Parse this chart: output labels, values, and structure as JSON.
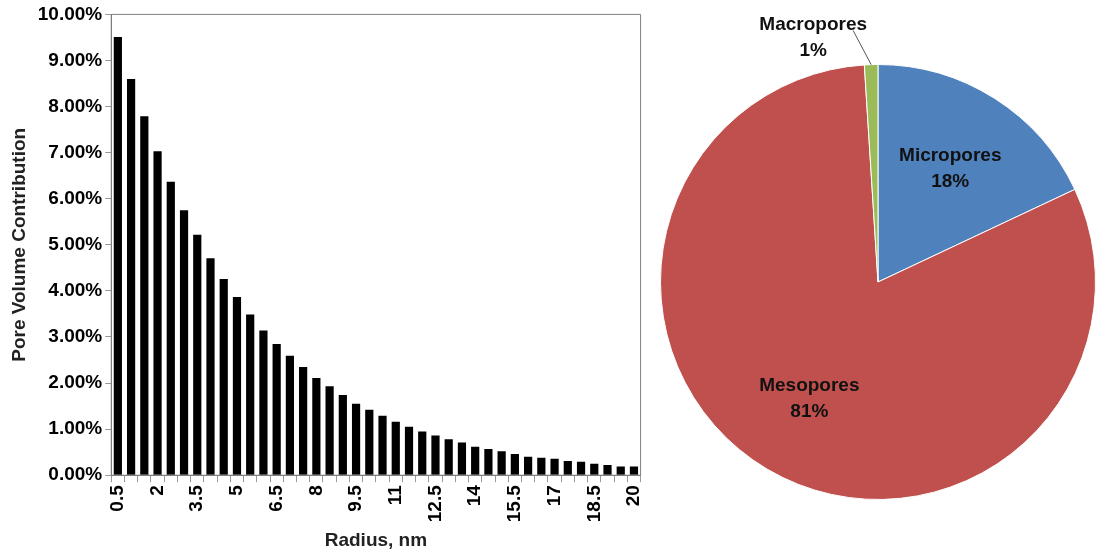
{
  "chart_data": [
    {
      "type": "bar",
      "xlabel": "Radius, nm",
      "ylabel": "Pore Volume Contribution",
      "categories": [
        "0.5",
        null,
        null,
        "2",
        null,
        null,
        "3.5",
        null,
        null,
        "5",
        null,
        null,
        "6.5",
        null,
        null,
        "8",
        null,
        null,
        "9.5",
        null,
        null,
        "11",
        null,
        null,
        "12.5",
        null,
        null,
        "14",
        null,
        null,
        "15.5",
        null,
        null,
        "17",
        null,
        null,
        "18.5",
        null,
        null,
        "20"
      ],
      "values": [
        9.51,
        8.6,
        7.79,
        7.03,
        6.37,
        5.75,
        5.22,
        4.71,
        4.26,
        3.87,
        3.49,
        3.14,
        2.85,
        2.59,
        2.35,
        2.11,
        1.93,
        1.74,
        1.55,
        1.42,
        1.29,
        1.16,
        1.05,
        0.95,
        0.86,
        0.78,
        0.71,
        0.62,
        0.57,
        0.52,
        0.46,
        0.4,
        0.38,
        0.36,
        0.31,
        0.29,
        0.25,
        0.22,
        0.19,
        0.19
      ],
      "color": "#000000",
      "ylim": [
        0,
        10
      ],
      "yticks": [
        {
          "value": 0,
          "label": "0.00%"
        },
        {
          "value": 1,
          "label": "1.00%"
        },
        {
          "value": 2,
          "label": "2.00%"
        },
        {
          "value": 3,
          "label": "3.00%"
        },
        {
          "value": 4,
          "label": "4.00%"
        },
        {
          "value": 5,
          "label": "5.00%"
        },
        {
          "value": 6,
          "label": "6.00%"
        },
        {
          "value": 7,
          "label": "7.00%"
        },
        {
          "value": 8,
          "label": "8.00%"
        },
        {
          "value": 9,
          "label": "9.00%"
        },
        {
          "value": 10,
          "label": "10.00%"
        }
      ],
      "grid": false,
      "legend": false
    },
    {
      "type": "pie",
      "categories": [
        "Micropores",
        "Mesopores",
        "Macropores"
      ],
      "values": [
        18,
        81,
        1
      ],
      "colors": [
        "#4f81bd",
        "#c0504d",
        "#9bbb59"
      ],
      "value_labels": [
        "18%",
        "81%",
        "1%"
      ],
      "legend": false
    }
  ]
}
